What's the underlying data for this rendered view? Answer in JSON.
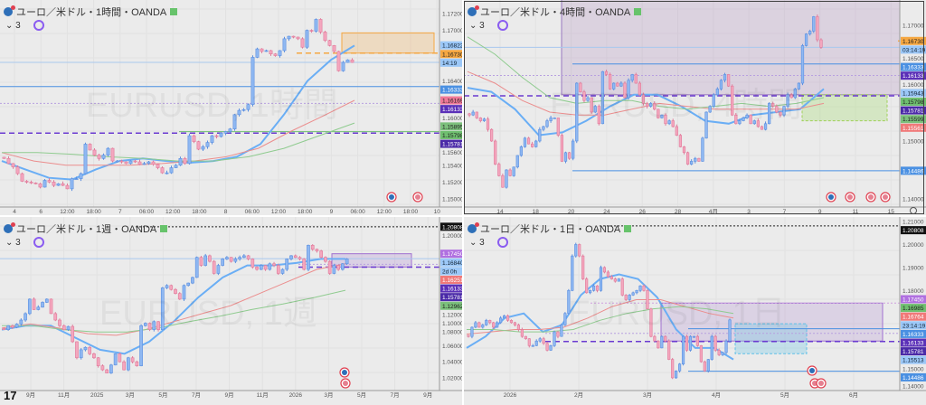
{
  "colors": {
    "up": "#8fb8f2",
    "up_border": "#5b8fe0",
    "down": "#f4a7be",
    "down_border": "#e07a9a",
    "blue": "#4a90e2",
    "purple": "#5b30b8",
    "green": "#70c070",
    "orange": "#f5a742",
    "pink": "#f07898",
    "ma_blue": "#6aaef5",
    "ma_pink": "#eb8d8d",
    "ma_green": "#8fcb8f"
  },
  "panels": [
    {
      "title": "ユーロ／米ドル・1時間・OANDA",
      "indicator_count": "⌄ 3",
      "watermark": "EURUSD, 1時間",
      "ylim": [
        1.14904,
        1.1736
      ],
      "ticks": [
        "1.17200",
        "1.17000",
        "1.16400",
        "1.16000",
        "1.15600",
        "1.15400",
        "1.15200",
        "1.15000"
      ],
      "time_labels": [
        "4",
        "6",
        "12:00",
        "18:00",
        "7",
        "06:00",
        "12:00",
        "18:00",
        "8",
        "06:00",
        "12:00",
        "18:00",
        "9",
        "06:00",
        "12:00",
        "18:00",
        "10"
      ],
      "closes": [
        1.1548,
        1.1542,
        1.1538,
        1.153,
        1.1521,
        1.152,
        1.1519,
        1.1518,
        1.1514,
        1.1522,
        1.152,
        1.1516,
        1.1518,
        1.1516,
        1.1512,
        1.1524,
        1.1524,
        1.153,
        1.1565,
        1.1558,
        1.1552,
        1.1548,
        1.1552,
        1.156,
        1.1545,
        1.1545,
        1.1544,
        1.1542,
        1.1545,
        1.1544,
        1.1541,
        1.1542,
        1.1544,
        1.1541,
        1.1537,
        1.1531,
        1.1531,
        1.1537,
        1.154,
        1.1548,
        1.1542,
        1.1575,
        1.1568,
        1.1559,
        1.1562,
        1.1567,
        1.1575,
        1.1574,
        1.1578,
        1.158,
        1.1583,
        1.16,
        1.1605,
        1.1606,
        1.1612,
        1.1668,
        1.1678,
        1.1675,
        1.1676,
        1.1672,
        1.167,
        1.1676,
        1.169,
        1.1693,
        1.1692,
        1.169,
        1.168,
        1.17,
        1.1699,
        1.1713,
        1.1698,
        1.1688,
        1.1682,
        1.1675,
        1.1652,
        1.1662,
        1.1665,
        1.1662
      ],
      "ma": {
        "blue": [
          1.1545,
          1.1535,
          1.1525,
          1.1523,
          1.1535,
          1.1545,
          1.1548,
          1.1545,
          1.1543,
          1.1545,
          1.155,
          1.1565,
          1.16,
          1.164,
          1.1665,
          1.1682
        ],
        "pink": [
          1.1555,
          1.1545,
          1.154,
          1.154,
          1.154,
          1.1542,
          1.1545,
          1.155,
          1.156,
          1.158,
          1.1598,
          1.1617
        ],
        "green": [
          1.1555,
          1.1555,
          1.1553,
          1.155,
          1.1548,
          1.1545,
          1.1545,
          1.155,
          1.156,
          1.1575,
          1.159
        ]
      },
      "lines": [
        {
          "price": 1.1662,
          "color": "#a9c8ee",
          "style": "solid"
        },
        {
          "price": 1.16333,
          "color": "#4a90e2",
          "style": "solid"
        },
        {
          "price": 1.16133,
          "color": "#b8a0e0",
          "style": "dotted"
        },
        {
          "price": 1.15781,
          "color": "#6a3ad0",
          "style": "dashed"
        },
        {
          "price": 1.15798,
          "color": "#70c070",
          "style": "solid"
        },
        {
          "price": 1.1673,
          "color": "#f5a742",
          "style": "dashed"
        }
      ],
      "zones": [
        {
          "top": 1.1697,
          "bottom": 1.1673,
          "fill": "rgba(245,167,66,0.25)",
          "stroke": "#f5a742",
          "style": "solid"
        }
      ],
      "tags": [
        {
          "text": "1.16822",
          "price": 1.16822,
          "bg": "#9cc8f8",
          "fg": "#123"
        },
        {
          "text": "1.16730",
          "price": 1.1673,
          "bg": "#f5a742",
          "fg": "#222"
        },
        {
          "text": "14:19",
          "price": 1.1662,
          "bg": "#9cc8f8",
          "fg": "#123"
        },
        {
          "text": "1.16333",
          "price": 1.16333,
          "bg": "#4a90e2",
          "fg": "#fff"
        },
        {
          "text": "1.16169",
          "price": 1.16169,
          "bg": "#f07898",
          "fg": "#222"
        },
        {
          "text": "1.16133",
          "price": 1.16133,
          "bg": "#5b30b8",
          "fg": "#fff"
        },
        {
          "text": "1.15895",
          "price": 1.15895,
          "bg": "#7cc07c",
          "fg": "#222"
        },
        {
          "text": "1.15798",
          "price": 1.15798,
          "bg": "#6fbf6f",
          "fg": "#222"
        },
        {
          "text": "1.15781",
          "price": 1.15781,
          "bg": "#4b2aa8",
          "fg": "#fff"
        }
      ]
    },
    {
      "title": "ユーロ／米ドル・4時間・OANDA",
      "indicator_count": "⌄ 3",
      "watermark": "EURUSD, 4時間",
      "ylim": [
        1.13859,
        1.17438
      ],
      "ticks": [
        "1.17000",
        "1.16500",
        "1.16000",
        "1.15000",
        "1.14000"
      ],
      "time_labels": [
        "14",
        "18",
        "20",
        "24",
        "26",
        "28",
        "4月",
        "3",
        "7",
        "9",
        "11",
        "15"
      ],
      "closes": [
        1.1545,
        1.155,
        1.154,
        1.1535,
        1.1538,
        1.152,
        1.15,
        1.146,
        1.144,
        1.142,
        1.145,
        1.144,
        1.1455,
        1.1475,
        1.149,
        1.1505,
        1.1495,
        1.149,
        1.15,
        1.152,
        1.1525,
        1.1535,
        1.154,
        1.154,
        1.151,
        1.1465,
        1.148,
        1.147,
        1.15,
        1.16,
        1.1585,
        1.157,
        1.1575,
        1.155,
        1.156,
        1.153,
        1.162,
        1.1615,
        1.159,
        1.16,
        1.1595,
        1.16,
        1.1575,
        1.1605,
        1.1615,
        1.16,
        1.158,
        1.1565,
        1.156,
        1.1565,
        1.1555,
        1.154,
        1.1545,
        1.153,
        1.1535,
        1.1525,
        1.151,
        1.149,
        1.148,
        1.146,
        1.1465,
        1.147,
        1.1465,
        1.1505,
        1.155,
        1.156,
        1.158,
        1.159,
        1.1605,
        1.1615,
        1.1595,
        1.1545,
        1.153,
        1.1535,
        1.154,
        1.1545,
        1.153,
        1.1535,
        1.1525,
        1.152,
        1.153,
        1.1565,
        1.156,
        1.155,
        1.1545,
        1.156,
        1.158,
        1.1575,
        1.159,
        1.16,
        1.1665,
        1.1685,
        1.169,
        1.1715,
        1.1675,
        1.1662
      ],
      "ma": {
        "blue": [
          1.1592,
          1.1585,
          1.1555,
          1.151,
          1.1515,
          1.1535,
          1.156,
          1.158,
          1.158,
          1.156,
          1.1535,
          1.153,
          1.1545,
          1.155,
          1.1555,
          1.159
        ],
        "pink": [
          1.162,
          1.16,
          1.157,
          1.155,
          1.1545,
          1.1545,
          1.1555,
          1.1565,
          1.156,
          1.1555,
          1.1555,
          1.1555,
          1.1555,
          1.1565
        ],
        "green": [
          1.168,
          1.165,
          1.161,
          1.1575,
          1.1565,
          1.157,
          1.157,
          1.156,
          1.1555,
          1.156,
          1.1565,
          1.156,
          1.1565,
          1.1575
        ]
      },
      "lines": [
        {
          "price": 1.1662,
          "color": "#a9c8ee",
          "style": "solid"
        },
        {
          "price": 1.16333,
          "color": "#4a90e2",
          "style": "solid"
        },
        {
          "price": 1.16133,
          "color": "#b8a0e0",
          "style": "dotted"
        },
        {
          "price": 1.15781,
          "color": "#6a3ad0",
          "style": "dashed"
        },
        {
          "price": 1.14486,
          "color": "#4a90e2",
          "style": "solid"
        },
        {
          "price": 1.1673,
          "color": "#f5a742",
          "style": "dashed"
        }
      ],
      "zones": [
        {
          "top": 1.1745,
          "bottom": 1.158,
          "fill": "rgba(150,100,170,0.18)",
          "stroke": "#9a78c0",
          "style": "solid"
        },
        {
          "top": 1.158,
          "bottom": 1.1535,
          "fill": "rgba(170,220,120,0.35)",
          "stroke": "#9fd05a",
          "style": "dashed"
        }
      ],
      "tags": [
        {
          "text": "1.16730",
          "price": 1.1673,
          "bg": "#f5a742",
          "fg": "#222"
        },
        {
          "text": "03:14:19",
          "price": 1.1662,
          "bg": "#9cc8f8",
          "fg": "#123"
        },
        {
          "text": "1.16333",
          "price": 1.16333,
          "bg": "#4a90e2",
          "fg": "#fff"
        },
        {
          "text": "1.16133",
          "price": 1.16133,
          "bg": "#5b30b8",
          "fg": "#fff"
        },
        {
          "text": "1.15943",
          "price": 1.15943,
          "bg": "#9cc8f8",
          "fg": "#123"
        },
        {
          "text": "1.15798",
          "price": 1.15798,
          "bg": "#6fbf6f",
          "fg": "#222"
        },
        {
          "text": "1.15781",
          "price": 1.15781,
          "bg": "#4b2aa8",
          "fg": "#fff"
        },
        {
          "text": "1.15599",
          "price": 1.15599,
          "bg": "#7cc07c",
          "fg": "#222"
        },
        {
          "text": "1.15561",
          "price": 1.15561,
          "bg": "#f07878",
          "fg": "#fff"
        },
        {
          "text": "1.14486",
          "price": 1.14486,
          "bg": "#4a90e2",
          "fg": "#fff"
        }
      ]
    },
    {
      "title": "ユーロ／米ドル・1週・OANDA",
      "indicator_count": "⌄ 3",
      "watermark": "EURUSD, 1週",
      "ylim": [
        1.00425,
        1.22025
      ],
      "ticks": [
        "1.20000",
        "1.12000",
        "1.10000",
        "1.08000",
        "1.06000",
        "1.04000",
        "1.02000"
      ],
      "time_labels": [
        "9月",
        "11月",
        "2025",
        "3月",
        "5月",
        "7月",
        "9月",
        "11月",
        "2026",
        "3月",
        "5月",
        "7月",
        "9月"
      ],
      "closes": [
        1.08,
        1.085,
        1.083,
        1.087,
        1.092,
        1.1,
        1.118,
        1.105,
        1.108,
        1.114,
        1.118,
        1.1,
        1.092,
        1.085,
        1.08,
        1.084,
        1.065,
        1.045,
        1.055,
        1.058,
        1.05,
        1.045,
        1.035,
        1.03,
        1.026,
        1.036,
        1.05,
        1.04,
        1.03,
        1.045,
        1.04,
        1.035,
        1.085,
        1.088,
        1.08,
        1.09,
        1.08,
        1.132,
        1.135,
        1.13,
        1.125,
        1.118,
        1.135,
        1.138,
        1.145,
        1.17,
        1.16,
        1.172,
        1.165,
        1.15,
        1.16,
        1.168,
        1.17,
        1.165,
        1.168,
        1.17,
        1.172,
        1.168,
        1.158,
        1.155,
        1.16,
        1.155,
        1.162,
        1.16,
        1.15,
        1.155,
        1.168,
        1.172,
        1.17,
        1.168,
        1.155,
        1.185,
        1.18,
        1.178,
        1.17,
        1.165,
        1.15,
        1.16,
        1.155,
        1.162,
        1.168
      ],
      "ma": {
        "blue": [
          1.08,
          1.085,
          1.085,
          1.07,
          1.055,
          1.05,
          1.065,
          1.09,
          1.12,
          1.145,
          1.16,
          1.16,
          1.163,
          1.168,
          1.168
        ],
        "pink": [
          1.082,
          1.087,
          1.082,
          1.075,
          1.073,
          1.08,
          1.09,
          1.1,
          1.11,
          1.125,
          1.14,
          1.155,
          1.162
        ],
        "green": [
          1.085,
          1.085,
          1.08,
          1.077,
          1.077,
          1.082,
          1.09,
          1.097,
          1.105,
          1.112,
          1.12,
          1.129
        ]
      },
      "lines": [
        {
          "price": 1.20808,
          "color": "#222",
          "style": "dotted"
        },
        {
          "price": 1.1684,
          "color": "#a9c8ee",
          "style": "solid"
        },
        {
          "price": 1.16133,
          "color": "#b8a0e0",
          "style": "dotted"
        },
        {
          "price": 1.15781,
          "color": "#6a3ad0",
          "style": "dashed"
        }
      ],
      "zones": [
        {
          "top": 1.1745,
          "bottom": 1.158,
          "fill": "rgba(150,100,200,0.2)",
          "stroke": "#a070d0",
          "style": "solid"
        }
      ],
      "tags": [
        {
          "text": "1.20808",
          "price": 1.20808,
          "bg": "#111",
          "fg": "#fff"
        },
        {
          "text": "1.17450",
          "price": 1.1745,
          "bg": "#b070e0",
          "fg": "#fff"
        },
        {
          "text": "1.16840",
          "price": 1.1684,
          "bg": "#9cc8f8",
          "fg": "#123"
        },
        {
          "text": "2d 0h",
          "price": 1.165,
          "bg": "#9cc8f8",
          "fg": "#123"
        },
        {
          "text": "1.16251",
          "price": 1.16251,
          "bg": "#f07878",
          "fg": "#fff"
        },
        {
          "text": "1.16133",
          "price": 1.16133,
          "bg": "#5b30b8",
          "fg": "#fff"
        },
        {
          "text": "1.15781",
          "price": 1.15781,
          "bg": "#4b2aa8",
          "fg": "#fff"
        },
        {
          "text": "1.12962",
          "price": 1.12962,
          "bg": "#7cc07c",
          "fg": "#222"
        }
      ]
    },
    {
      "title": "ユーロ／米ドル・1日・OANDA",
      "indicator_count": "⌄ 3",
      "watermark": "EURUSD, 1日",
      "ylim": [
        1.13646,
        1.21197
      ],
      "ticks": [
        "1.21000",
        "1.20000",
        "1.19000",
        "1.18000",
        "1.15000",
        "1.14000"
      ],
      "time_labels": [
        "2026",
        "2月",
        "3月",
        "4月",
        "5月",
        "6月"
      ],
      "closes": [
        1.16,
        1.164,
        1.166,
        1.164,
        1.165,
        1.167,
        1.166,
        1.164,
        1.166,
        1.168,
        1.169,
        1.167,
        1.166,
        1.165,
        1.163,
        1.16,
        1.159,
        1.156,
        1.156,
        1.158,
        1.159,
        1.157,
        1.154,
        1.156,
        1.162,
        1.16,
        1.165,
        1.17,
        1.18,
        1.195,
        1.2,
        1.195,
        1.185,
        1.179,
        1.18,
        1.182,
        1.18,
        1.19,
        1.188,
        1.186,
        1.185,
        1.184,
        1.185,
        1.178,
        1.176,
        1.178,
        1.179,
        1.18,
        1.182,
        1.18,
        1.172,
        1.16,
        1.158,
        1.155,
        1.16,
        1.158,
        1.15,
        1.142,
        1.145,
        1.148,
        1.16,
        1.154,
        1.16,
        1.16,
        1.156,
        1.149,
        1.145,
        1.15,
        1.16,
        1.154,
        1.152,
        1.153,
        1.158,
        1.1672
      ],
      "ma": {
        "blue": [
          1.155,
          1.16,
          1.168,
          1.17,
          1.162,
          1.165,
          1.178,
          1.185,
          1.187,
          1.185,
          1.177,
          1.163,
          1.155,
          1.155,
          1.15
        ],
        "pink": [
          1.161,
          1.162,
          1.163,
          1.163,
          1.164,
          1.168,
          1.173,
          1.176,
          1.176,
          1.173,
          1.17,
          1.168
        ],
        "green": [
          1.163,
          1.163,
          1.162,
          1.162,
          1.163,
          1.167,
          1.17,
          1.172,
          1.173,
          1.172,
          1.17
        ]
      },
      "lines": [
        {
          "price": 1.20808,
          "color": "#222",
          "style": "dotted"
        },
        {
          "price": 1.1745,
          "color": "#d0a0e0",
          "style": "dotted"
        },
        {
          "price": 1.16333,
          "color": "#4a90e2",
          "style": "solid"
        },
        {
          "price": 1.16133,
          "color": "#b8a0e0",
          "style": "dotted"
        },
        {
          "price": 1.15781,
          "color": "#6a3ad0",
          "style": "dashed"
        },
        {
          "price": 1.14486,
          "color": "#4a90e2",
          "style": "solid"
        }
      ],
      "zones": [
        {
          "top": 1.1745,
          "bottom": 1.158,
          "fill": "rgba(150,100,200,0.18)",
          "stroke": "#a070d0",
          "style": "solid"
        },
        {
          "top": 1.1655,
          "bottom": 1.1525,
          "fill": "rgba(120,200,230,0.35)",
          "stroke": "#5ec0e8",
          "style": "dashed"
        }
      ],
      "tags": [
        {
          "text": "1.20808",
          "price": 1.20808,
          "bg": "#111",
          "fg": "#fff"
        },
        {
          "text": "1.17450",
          "price": 1.1745,
          "bg": "#b070e0",
          "fg": "#fff"
        },
        {
          "text": "1.16985",
          "price": 1.16985,
          "bg": "#6fbf6f",
          "fg": "#222"
        },
        {
          "text": "1.16764",
          "price": 1.16764,
          "bg": "#f07878",
          "fg": "#fff"
        },
        {
          "text": "23:14:19",
          "price": 1.1651,
          "bg": "#9cc8f8",
          "fg": "#123"
        },
        {
          "text": "1.16333",
          "price": 1.16333,
          "bg": "#4a90e2",
          "fg": "#fff"
        },
        {
          "text": "1.16133",
          "price": 1.16133,
          "bg": "#5b30b8",
          "fg": "#fff"
        },
        {
          "text": "1.15781",
          "price": 1.15781,
          "bg": "#4b2aa8",
          "fg": "#fff"
        },
        {
          "text": "1.15513",
          "price": 1.15513,
          "bg": "#9cc8f8",
          "fg": "#123"
        },
        {
          "text": "1.14486",
          "price": 1.14486,
          "bg": "#4a90e2",
          "fg": "#fff"
        }
      ]
    }
  ],
  "logo": "TV"
}
